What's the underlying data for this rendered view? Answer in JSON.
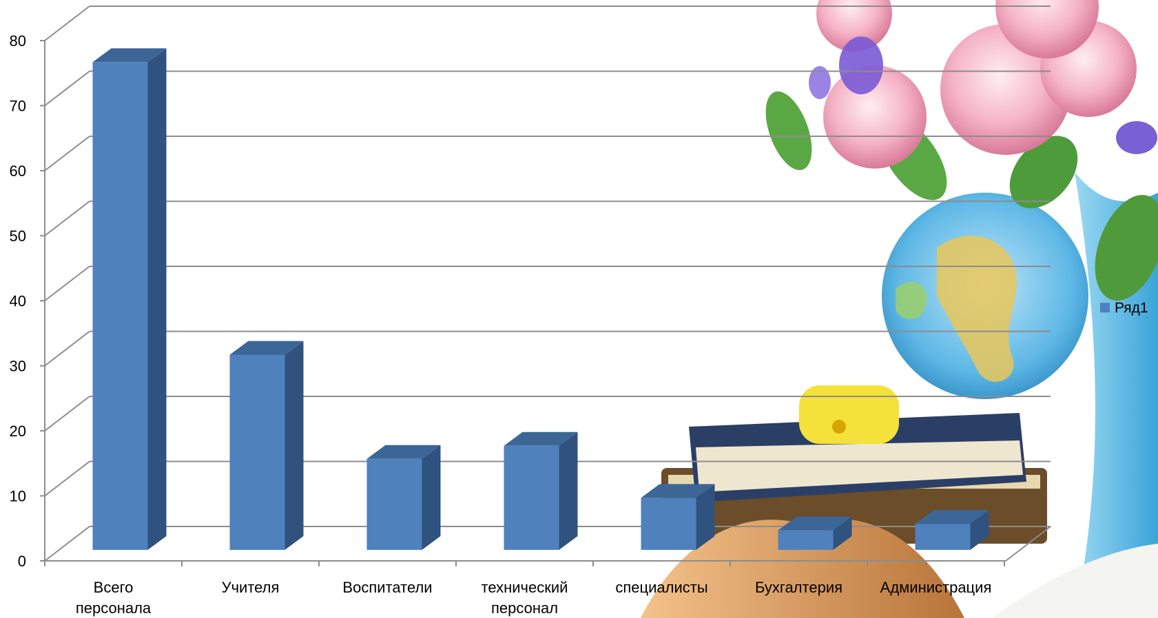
{
  "colors": {
    "bar_front": "#4f81bd",
    "bar_side": "#2f527f",
    "bar_top": "#3b6696",
    "grid": "#8c8c8c",
    "axis": "#8c8c8c"
  },
  "chart_data": {
    "type": "bar",
    "style": "3d-column",
    "categories": [
      [
        "Всего",
        "персонала"
      ],
      [
        "Учителя"
      ],
      [
        "Воспитатели"
      ],
      [
        "технический",
        "персонал"
      ],
      [
        "специалисты"
      ],
      [
        "Бухгалтерия"
      ],
      [
        "Администрация"
      ]
    ],
    "series": [
      {
        "name": "Ряд1",
        "values": [
          75,
          30,
          14,
          16,
          8,
          3,
          4
        ]
      }
    ],
    "yticks": [
      "0",
      "10",
      "20",
      "30",
      "40",
      "50",
      "60",
      "70",
      "80"
    ],
    "ylim": [
      0,
      80
    ],
    "grid": true,
    "legend_position": "right",
    "title": "",
    "xlabel": "",
    "ylabel": ""
  },
  "background": {
    "decor_image_icon": "flowers-globe-books-illustration"
  }
}
